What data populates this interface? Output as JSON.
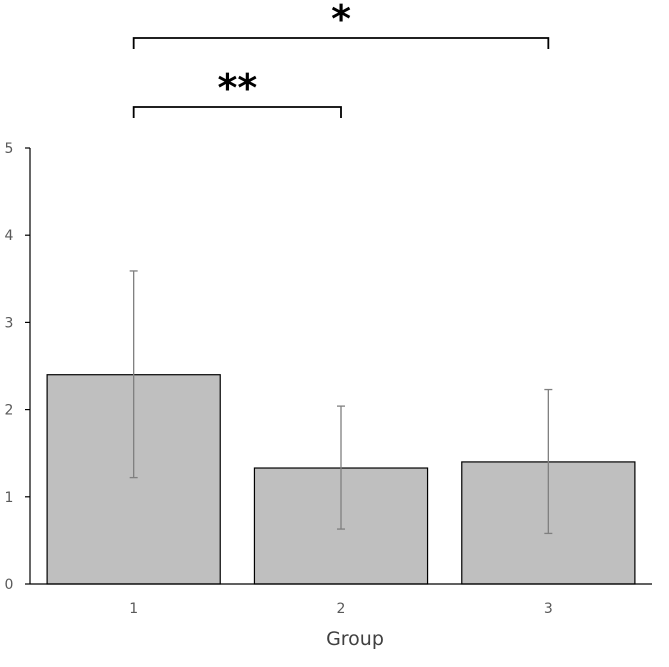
{
  "chart_data": {
    "type": "bar",
    "categories": [
      "1",
      "2",
      "3"
    ],
    "values": [
      2.4,
      1.33,
      1.4
    ],
    "error_low": [
      1.22,
      0.63,
      0.58
    ],
    "error_high": [
      3.59,
      2.04,
      2.23
    ],
    "xlabel": "Group",
    "ylabel": "",
    "ylim": [
      0,
      5
    ],
    "yticks": [
      "0",
      "1",
      "2",
      "3",
      "4",
      "5"
    ],
    "grid": false,
    "bar_color": "#bfbfbf",
    "bar_edge_color": "#000000",
    "error_bar_color": "#7f7f7f",
    "significance": [
      {
        "from": "1",
        "to": "2",
        "label": "**"
      },
      {
        "from": "1",
        "to": "3",
        "label": "*"
      }
    ]
  }
}
